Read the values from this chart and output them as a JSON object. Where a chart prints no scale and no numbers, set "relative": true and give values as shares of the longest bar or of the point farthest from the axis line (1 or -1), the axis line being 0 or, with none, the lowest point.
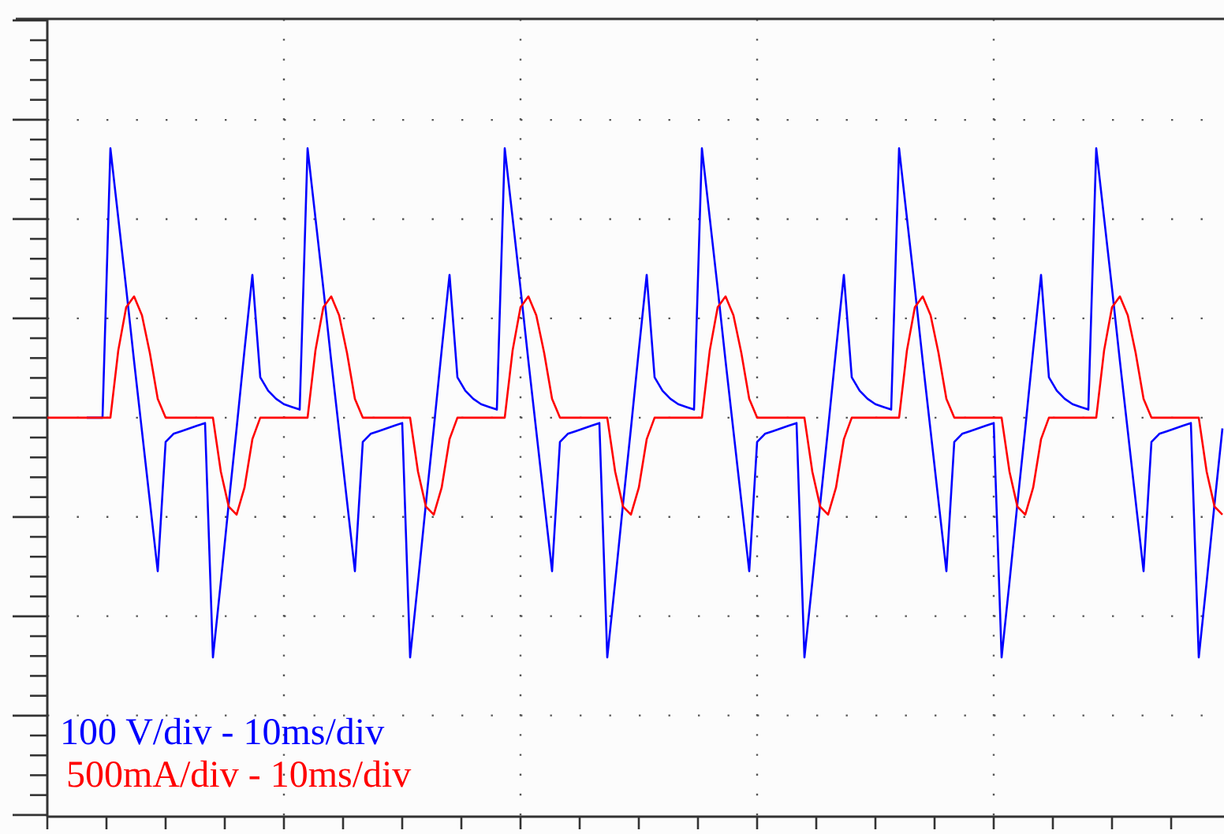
{
  "chart_data": {
    "type": "line",
    "relative": true,
    "grid": true,
    "categories": [
      null,
      null,
      null,
      null,
      null,
      null,
      null,
      null,
      null,
      null,
      null,
      null,
      null,
      null,
      null,
      null,
      null,
      null,
      null,
      null,
      null,
      null,
      null,
      null,
      null,
      null,
      null,
      null,
      null,
      null,
      null,
      null,
      null,
      null,
      null,
      null,
      null,
      null,
      null,
      null,
      null,
      null,
      null,
      null,
      null,
      null,
      null,
      null,
      null,
      null,
      null,
      null,
      null,
      null,
      null,
      null,
      null,
      null,
      null,
      null,
      null,
      null,
      null,
      null,
      null,
      null,
      null,
      null,
      null,
      null,
      null,
      null,
      null,
      null,
      null,
      null,
      null,
      null,
      null,
      null,
      null,
      null,
      null,
      null,
      null,
      null,
      null,
      null,
      null,
      null,
      null,
      null,
      null,
      null,
      null,
      null,
      null,
      null,
      null,
      null,
      null,
      null,
      null,
      null,
      null,
      null,
      null,
      null,
      null,
      null,
      null,
      null,
      null,
      null,
      null,
      null,
      null,
      null,
      null,
      null,
      null,
      null,
      null,
      null,
      null,
      null,
      null,
      null,
      null,
      null,
      null,
      null,
      null,
      null,
      null,
      null,
      null,
      null,
      null,
      null,
      null,
      null,
      null,
      null,
      null,
      null,
      null,
      null,
      null,
      null
    ],
    "series": [
      {
        "color": "#0000ff",
        "values": [
          null,
          null,
          null,
          null,
          null,
          0,
          0,
          0,
          1.0,
          0.74,
          0.48,
          0.21,
          -0.05,
          -0.31,
          -0.57,
          -0.09,
          -0.06,
          -0.05,
          -0.04,
          -0.03,
          -0.02,
          -0.89,
          -0.61,
          -0.32,
          -0.04,
          0.25,
          0.53,
          0.15,
          0.1,
          0.07,
          0.05,
          0.04,
          0.03,
          1.0,
          0.74,
          0.48,
          0.21,
          -0.05,
          -0.31,
          -0.57,
          -0.09,
          -0.06,
          -0.05,
          -0.04,
          -0.03,
          -0.02,
          -0.89,
          -0.61,
          -0.32,
          -0.04,
          0.25,
          0.53,
          0.15,
          0.1,
          0.07,
          0.05,
          0.04,
          0.03,
          1.0,
          0.74,
          0.48,
          0.21,
          -0.05,
          -0.31,
          -0.57,
          -0.09,
          -0.06,
          -0.05,
          -0.04,
          -0.03,
          -0.02,
          -0.89,
          -0.61,
          -0.32,
          -0.04,
          0.25,
          0.53,
          0.15,
          0.1,
          0.07,
          0.05,
          0.04,
          0.03,
          1.0,
          0.74,
          0.48,
          0.21,
          -0.05,
          -0.31,
          -0.57,
          -0.09,
          -0.06,
          -0.05,
          -0.04,
          -0.03,
          -0.02,
          -0.89,
          -0.61,
          -0.32,
          -0.04,
          0.25,
          0.53,
          0.15,
          0.1,
          0.07,
          0.05,
          0.04,
          0.03,
          1.0,
          0.74,
          0.48,
          0.21,
          -0.05,
          -0.31,
          -0.57,
          -0.09,
          -0.06,
          -0.05,
          -0.04,
          -0.03,
          -0.02,
          -0.89,
          -0.61,
          -0.32,
          -0.04,
          0.25,
          0.53,
          0.15,
          0.1,
          0.07,
          0.05,
          0.04,
          0.03,
          1.0,
          0.74,
          0.48,
          0.21,
          -0.05,
          -0.31,
          -0.57,
          -0.09,
          -0.06,
          -0.05,
          -0.04,
          -0.03,
          -0.02,
          -0.89,
          -0.61,
          -0.32,
          -0.04
        ]
      },
      {
        "color": "#ff0000",
        "values": [
          0,
          0,
          0,
          0,
          0,
          0,
          0,
          0,
          0,
          0.25,
          0.41,
          0.45,
          0.38,
          0.24,
          0.07,
          0,
          0,
          0,
          0,
          0,
          0,
          0,
          -0.2,
          -0.33,
          -0.36,
          -0.26,
          -0.08,
          0,
          0,
          0,
          0,
          0,
          0,
          0,
          0.25,
          0.41,
          0.45,
          0.38,
          0.24,
          0.07,
          0,
          0,
          0,
          0,
          0,
          0,
          0,
          -0.2,
          -0.33,
          -0.36,
          -0.26,
          -0.08,
          0,
          0,
          0,
          0,
          0,
          0,
          0,
          0.25,
          0.41,
          0.45,
          0.38,
          0.24,
          0.07,
          0,
          0,
          0,
          0,
          0,
          0,
          0,
          -0.2,
          -0.33,
          -0.36,
          -0.26,
          -0.08,
          0,
          0,
          0,
          0,
          0,
          0,
          0,
          0.25,
          0.41,
          0.45,
          0.38,
          0.24,
          0.07,
          0,
          0,
          0,
          0,
          0,
          0,
          0,
          -0.2,
          -0.33,
          -0.36,
          -0.26,
          -0.08,
          0,
          0,
          0,
          0,
          0,
          0,
          0,
          0.25,
          0.41,
          0.45,
          0.38,
          0.24,
          0.07,
          0,
          0,
          0,
          0,
          0,
          0,
          0,
          -0.2,
          -0.33,
          -0.36,
          -0.26,
          -0.08,
          0,
          0,
          0,
          0,
          0,
          0,
          0,
          0.25,
          0.41,
          0.45,
          0.38,
          0.24,
          0.07,
          0,
          0,
          0,
          0,
          0,
          0,
          0,
          -0.2,
          -0.33,
          -0.36
        ]
      }
    ],
    "annotations": [
      "100 V/div - 10ms/div",
      "500mA/div - 10ms/div"
    ]
  }
}
